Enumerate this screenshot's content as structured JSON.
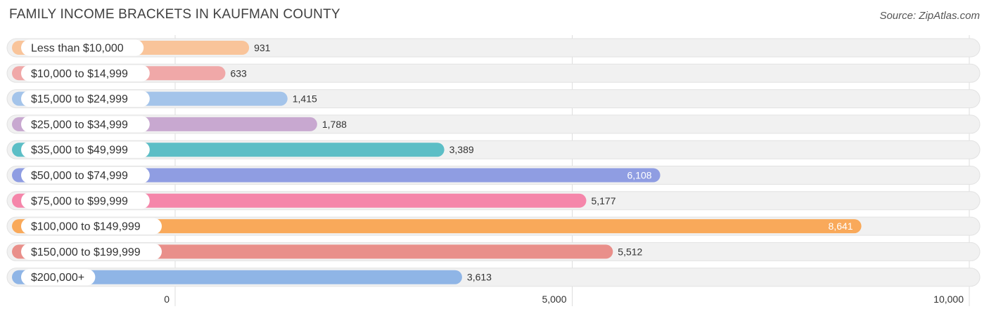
{
  "title": "FAMILY INCOME BRACKETS IN KAUFMAN COUNTY",
  "source": "Source: ZipAtlas.com",
  "chart_data": {
    "type": "bar",
    "orientation": "horizontal",
    "title": "FAMILY INCOME BRACKETS IN KAUFMAN COUNTY",
    "categories": [
      "Less than $10,000",
      "$10,000 to $14,999",
      "$15,000 to $24,999",
      "$25,000 to $34,999",
      "$35,000 to $49,999",
      "$50,000 to $74,999",
      "$75,000 to $99,999",
      "$100,000 to $149,999",
      "$150,000 to $199,999",
      "$200,000+"
    ],
    "values": [
      931,
      633,
      1415,
      1788,
      3389,
      6108,
      5177,
      8641,
      5512,
      3613
    ],
    "value_labels": [
      "931",
      "633",
      "1,415",
      "1,788",
      "3,389",
      "6,108",
      "5,177",
      "8,641",
      "5,512",
      "3,613"
    ],
    "colors": [
      "#f9c49a",
      "#f0a8a8",
      "#a4c4ea",
      "#c8a8d0",
      "#5cbec6",
      "#8f9de2",
      "#f586aa",
      "#f9a95a",
      "#e98f8a",
      "#8fb5e6"
    ],
    "label_inside": [
      false,
      false,
      false,
      false,
      false,
      true,
      false,
      true,
      false,
      false
    ],
    "xlim": [
      0,
      10000
    ],
    "xticks": [
      0,
      5000,
      10000
    ],
    "xtick_labels": [
      "0",
      "5,000",
      "10,000"
    ],
    "grid": true,
    "xlabel": "",
    "ylabel": ""
  }
}
